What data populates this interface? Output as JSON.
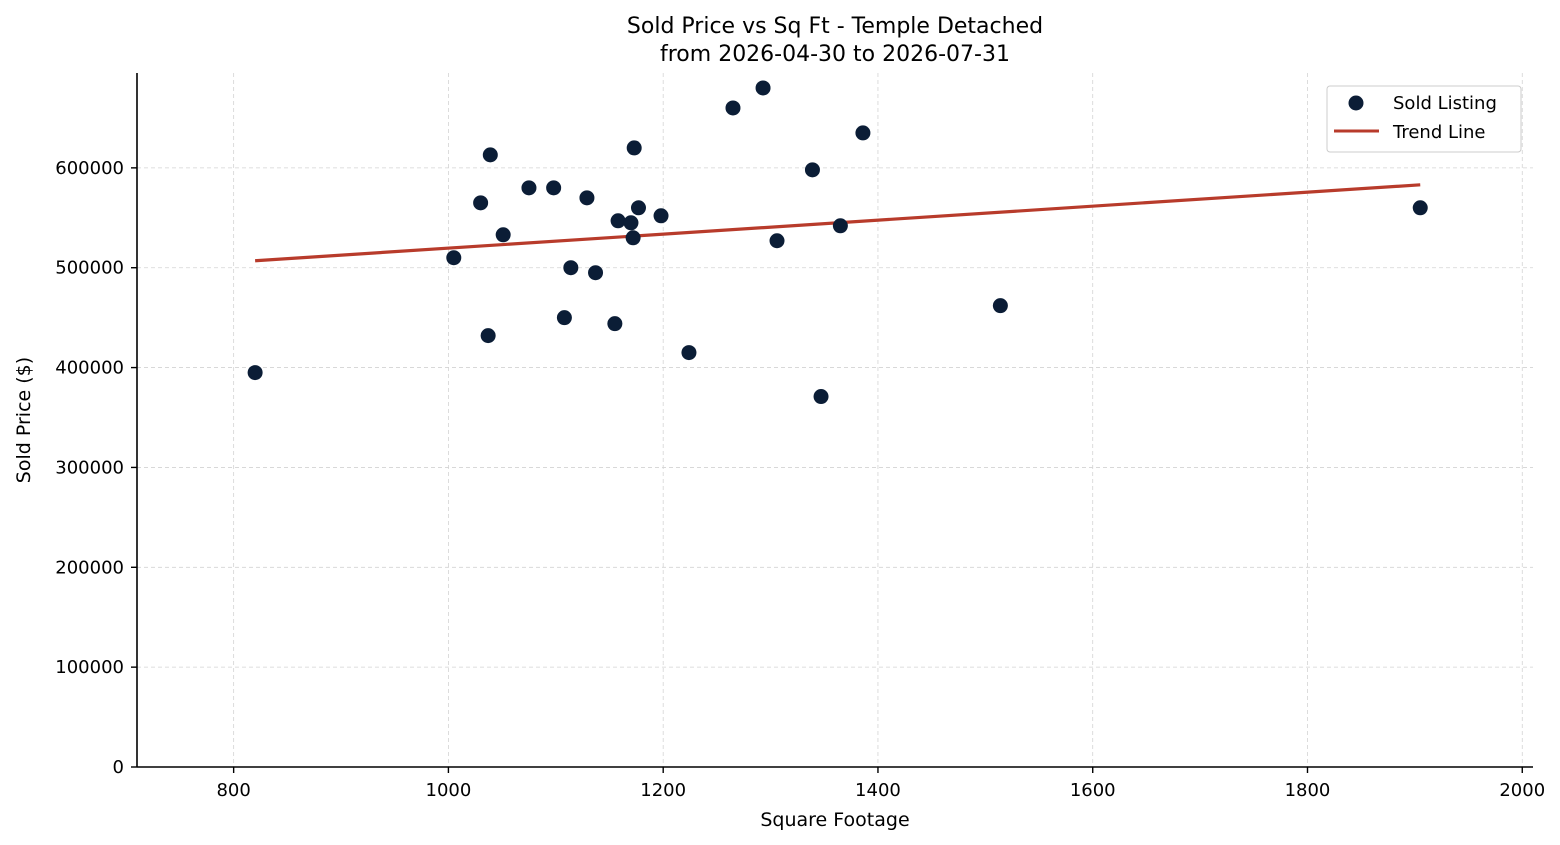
{
  "chart_data": {
    "type": "scatter",
    "title": "Sold Price vs Sq Ft - Temple Detached",
    "subtitle": "from 2026-04-30 to 2026-07-31",
    "xlabel": "Square Footage",
    "ylabel": "Sold Price ($)",
    "xlim": [
      710,
      2010
    ],
    "ylim": [
      0,
      695000
    ],
    "xticks": [
      800,
      1000,
      1200,
      1400,
      1600,
      1800,
      2000
    ],
    "yticks": [
      0,
      100000,
      200000,
      300000,
      400000,
      500000,
      600000
    ],
    "grid": true,
    "legend_position": "top-right",
    "colors": {
      "points": "#0b1d36",
      "trend": "#b83b2b"
    },
    "series": [
      {
        "name": "Sold Listing",
        "type": "scatter",
        "points": [
          {
            "x": 820,
            "y": 395000
          },
          {
            "x": 1005,
            "y": 510000
          },
          {
            "x": 1030,
            "y": 565000
          },
          {
            "x": 1037,
            "y": 432000
          },
          {
            "x": 1039,
            "y": 613000
          },
          {
            "x": 1051,
            "y": 533000
          },
          {
            "x": 1075,
            "y": 580000
          },
          {
            "x": 1098,
            "y": 580000
          },
          {
            "x": 1108,
            "y": 450000
          },
          {
            "x": 1114,
            "y": 500000
          },
          {
            "x": 1129,
            "y": 570000
          },
          {
            "x": 1137,
            "y": 495000
          },
          {
            "x": 1155,
            "y": 444000
          },
          {
            "x": 1158,
            "y": 547000
          },
          {
            "x": 1170,
            "y": 545000
          },
          {
            "x": 1172,
            "y": 530000
          },
          {
            "x": 1173,
            "y": 620000
          },
          {
            "x": 1177,
            "y": 560000
          },
          {
            "x": 1198,
            "y": 552000
          },
          {
            "x": 1224,
            "y": 415000
          },
          {
            "x": 1265,
            "y": 660000
          },
          {
            "x": 1293,
            "y": 680000
          },
          {
            "x": 1306,
            "y": 527000
          },
          {
            "x": 1339,
            "y": 598000
          },
          {
            "x": 1347,
            "y": 371000
          },
          {
            "x": 1365,
            "y": 542000
          },
          {
            "x": 1386,
            "y": 635000
          },
          {
            "x": 1514,
            "y": 462000
          },
          {
            "x": 1905,
            "y": 560000
          }
        ]
      },
      {
        "name": "Trend Line",
        "type": "line",
        "points": [
          {
            "x": 820,
            "y": 507000
          },
          {
            "x": 1905,
            "y": 583000
          }
        ]
      }
    ]
  }
}
